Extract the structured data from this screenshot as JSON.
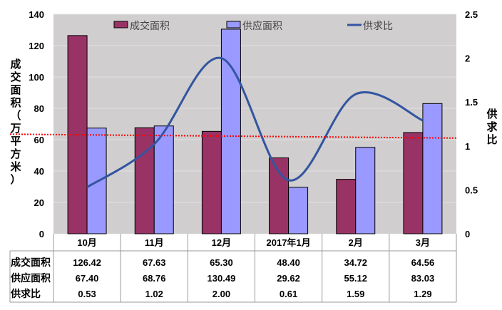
{
  "chart_data": {
    "type": "bar",
    "categories": [
      "10月",
      "11月",
      "12月",
      "2017年1月",
      "2月",
      "3月"
    ],
    "series": [
      {
        "name": "成交面积",
        "axis": "left",
        "kind": "bar",
        "color": "#993366",
        "values": [
          126.42,
          67.63,
          65.3,
          48.4,
          34.72,
          64.56
        ],
        "labels": [
          "126.42",
          "67.63",
          "65.30",
          "48.40",
          "34.72",
          "64.56"
        ]
      },
      {
        "name": "供应面积",
        "axis": "left",
        "kind": "bar",
        "color": "#9999ff",
        "values": [
          67.4,
          68.76,
          130.49,
          29.62,
          55.12,
          83.03
        ],
        "labels": [
          "67.40",
          "68.76",
          "130.49",
          "29.62",
          "55.12",
          "83.03"
        ]
      },
      {
        "name": "供求比",
        "axis": "right",
        "kind": "line",
        "color": "#3355a0",
        "values": [
          0.53,
          1.02,
          2.0,
          0.61,
          1.59,
          1.29
        ],
        "labels": [
          "0.53",
          "1.02",
          "2.00",
          "0.61",
          "1.59",
          "1.29"
        ]
      }
    ],
    "trendline": {
      "color": "#ff0000",
      "start": 63.5,
      "end": 61
    },
    "ylabel": "成交面积（万平方米）",
    "y2label": "供求比",
    "ylim": [
      0,
      140
    ],
    "y2lim": [
      0,
      2.5
    ],
    "yticks": [
      "0",
      "20",
      "40",
      "60",
      "80",
      "100",
      "120",
      "140"
    ],
    "y2ticks": [
      "0",
      "0.5",
      "1",
      "1.5",
      "2",
      "2.5"
    ],
    "legend": "top",
    "grid": true,
    "data_table": true
  }
}
